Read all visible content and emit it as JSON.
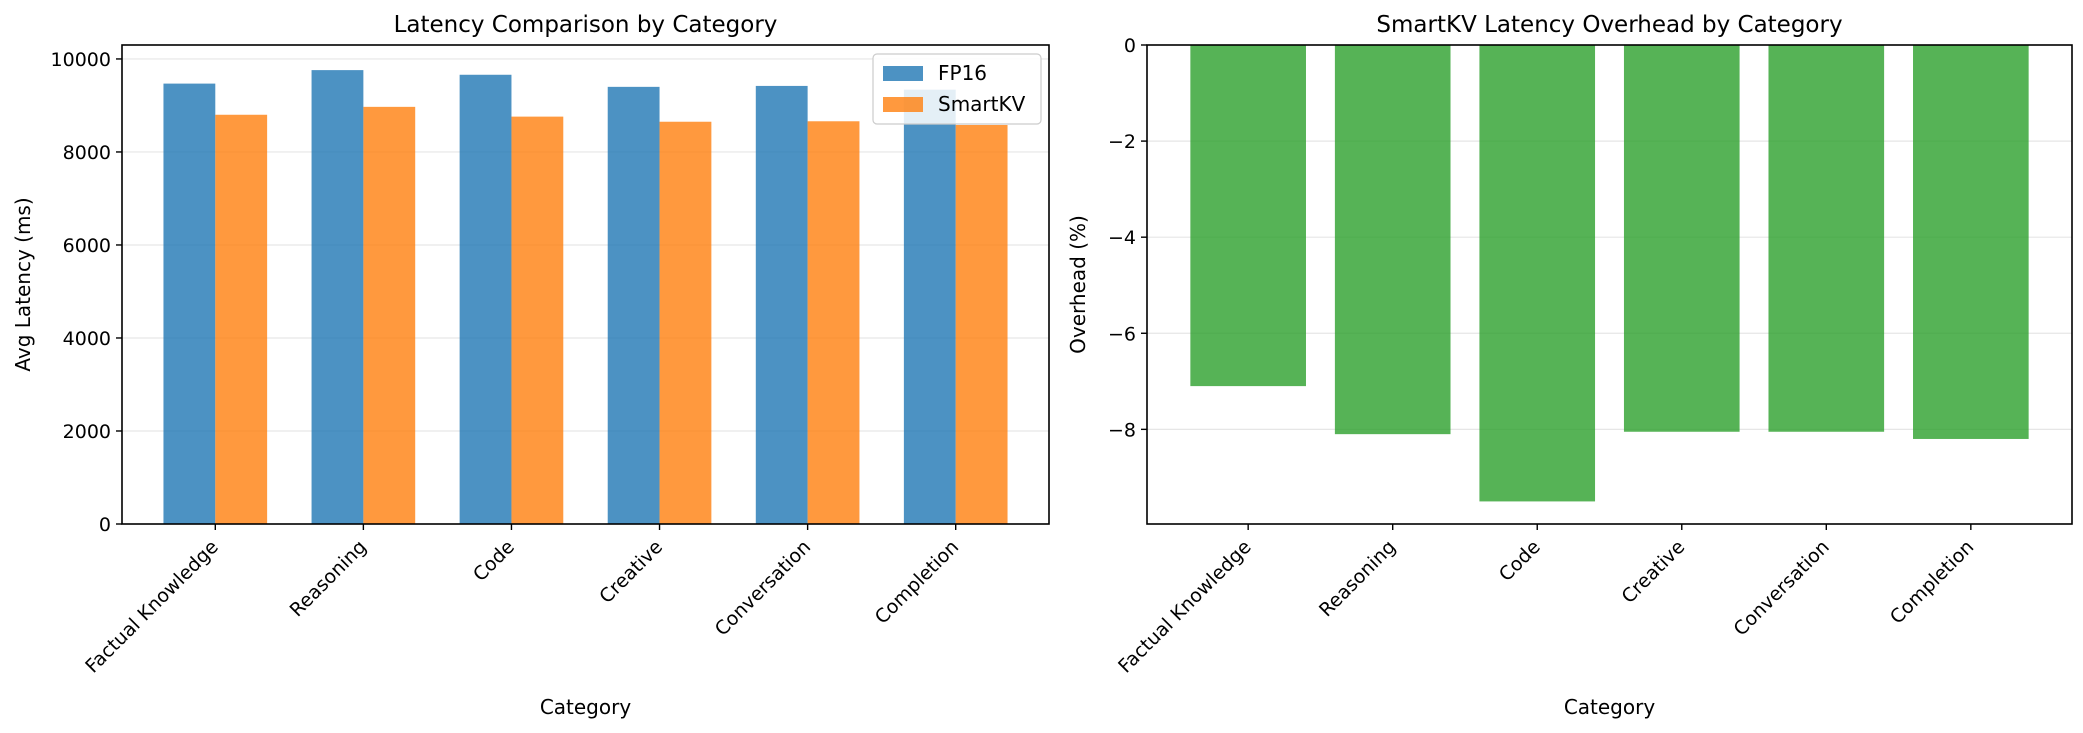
{
  "chart_data": [
    {
      "type": "bar",
      "title": "Latency Comparison by Category",
      "xlabel": "Category",
      "ylabel": "Avg Latency (ms)",
      "ylim": [
        0,
        10300
      ],
      "yticks": [
        0,
        2000,
        4000,
        6000,
        8000,
        10000
      ],
      "ytick_labels": [
        "0",
        "2000",
        "4000",
        "6000",
        "8000",
        "10000"
      ],
      "grid": "horizontal",
      "legend": "top-right",
      "categories": [
        "Factual Knowledge",
        "Reasoning",
        "Code",
        "Creative",
        "Conversation",
        "Completion"
      ],
      "series": [
        {
          "name": "FP16",
          "color": "#1f77b4",
          "values": [
            9470,
            9760,
            9660,
            9400,
            9420,
            9340
          ]
        },
        {
          "name": "SmartKV",
          "color": "#ff7f0e",
          "values": [
            8800,
            8970,
            8760,
            8650,
            8660,
            8580
          ]
        }
      ]
    },
    {
      "type": "bar",
      "title": "SmartKV Latency Overhead by Category",
      "xlabel": "Category",
      "ylabel": "Overhead (%)",
      "ylim": [
        -9.97,
        0
      ],
      "yticks": [
        -8,
        -6,
        -4,
        -2,
        0
      ],
      "ytick_labels": [
        "−8",
        "−6",
        "−4",
        "−2",
        "0"
      ],
      "grid": "horizontal",
      "categories": [
        "Factual Knowledge",
        "Reasoning",
        "Code",
        "Creative",
        "Conversation",
        "Completion"
      ],
      "series": [
        {
          "color": "#2ca02c",
          "values": [
            -7.1,
            -8.1,
            -9.5,
            -8.05,
            -8.05,
            -8.2
          ]
        }
      ]
    }
  ]
}
